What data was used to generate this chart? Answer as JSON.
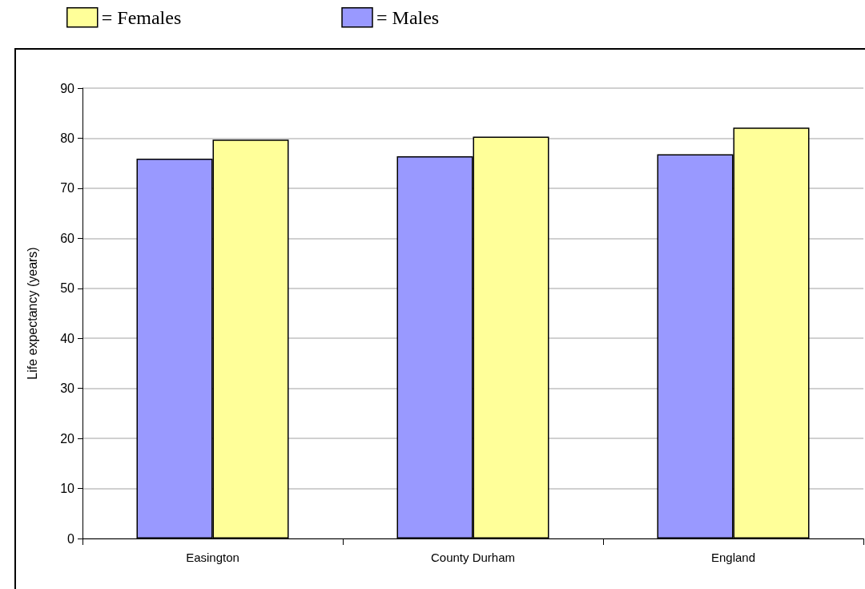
{
  "chart_data": {
    "type": "bar",
    "ylabel": "Life expectancy (years)",
    "categories": [
      "Easington",
      "County Durham",
      "England"
    ],
    "series": [
      {
        "name": "= Males",
        "color": "#9999ff",
        "values": [
          75.9,
          76.4,
          76.8
        ]
      },
      {
        "name": "= Females",
        "color": "#ffff99",
        "values": [
          79.7,
          80.3,
          82.1
        ]
      }
    ],
    "ylim": [
      0,
      90
    ],
    "yticks": [
      0,
      10,
      20,
      30,
      40,
      50,
      60,
      70,
      80,
      90
    ],
    "grid": "y",
    "legend": "top left"
  }
}
